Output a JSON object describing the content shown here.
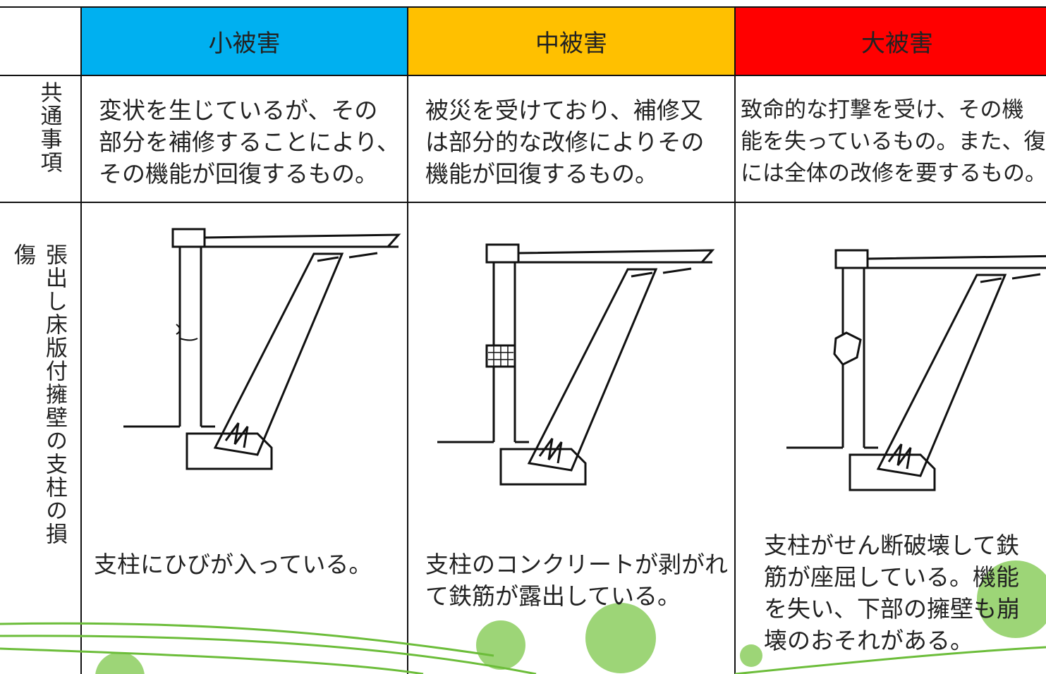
{
  "table": {
    "headers": [
      "小被害",
      "中被害",
      "大被害"
    ],
    "rows": [
      {
        "label": "共通事項",
        "cells": [
          [
            "変状を生じているが、その",
            "部分を補修することにより、",
            "その機能が回復するもの。"
          ],
          [
            "被災を受けており、補修又",
            "は部分的な改修によりその",
            "機能が回復するもの。"
          ],
          [
            "致命的な打撃を受け、その機",
            "能を失っているもの。また、復旧",
            "には全体の改修を要するもの。"
          ]
        ]
      },
      {
        "label": "張出し床版付擁壁の支柱の損傷",
        "cells": [
          [
            "支柱にひびが入っている。"
          ],
          [
            "支柱のコンクリートが剥がれ",
            "て鉄筋が露出している。"
          ],
          [
            "支柱がせん断破壊して鉄",
            "筋が座屈している。機能",
            "を失い、下部の擁壁も崩",
            "壊のおそれがある。"
          ]
        ]
      }
    ]
  }
}
